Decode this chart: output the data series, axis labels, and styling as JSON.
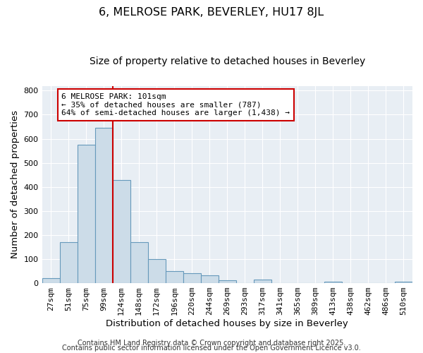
{
  "title": "6, MELROSE PARK, BEVERLEY, HU17 8JL",
  "subtitle": "Size of property relative to detached houses in Beverley",
  "xlabel": "Distribution of detached houses by size in Beverley",
  "ylabel": "Number of detached properties",
  "footer_line1": "Contains HM Land Registry data © Crown copyright and database right 2025.",
  "footer_line2": "Contains public sector information licensed under the Open Government Licence v3.0.",
  "bar_labels": [
    "27sqm",
    "51sqm",
    "75sqm",
    "99sqm",
    "124sqm",
    "148sqm",
    "172sqm",
    "196sqm",
    "220sqm",
    "244sqm",
    "269sqm",
    "293sqm",
    "317sqm",
    "341sqm",
    "365sqm",
    "389sqm",
    "413sqm",
    "438sqm",
    "462sqm",
    "486sqm",
    "510sqm"
  ],
  "bar_values": [
    20,
    170,
    575,
    645,
    430,
    170,
    100,
    50,
    40,
    32,
    12,
    0,
    15,
    0,
    0,
    0,
    5,
    0,
    0,
    0,
    5
  ],
  "bar_color": "#ccdce8",
  "bar_edge_color": "#6699bb",
  "vline_x_idx": 3,
  "vline_color": "#cc0000",
  "annotation_text": "6 MELROSE PARK: 101sqm\n← 35% of detached houses are smaller (787)\n64% of semi-detached houses are larger (1,438) →",
  "annotation_box_color": "#ffffff",
  "annotation_box_edge": "#cc0000",
  "ylim": [
    0,
    820
  ],
  "yticks": [
    0,
    100,
    200,
    300,
    400,
    500,
    600,
    700,
    800
  ],
  "plot_bg_color": "#e8eef4",
  "background_color": "#ffffff",
  "grid_color": "#ffffff",
  "title_fontsize": 11.5,
  "subtitle_fontsize": 10,
  "axis_label_fontsize": 9.5,
  "tick_fontsize": 8,
  "annotation_fontsize": 8,
  "footer_fontsize": 7
}
